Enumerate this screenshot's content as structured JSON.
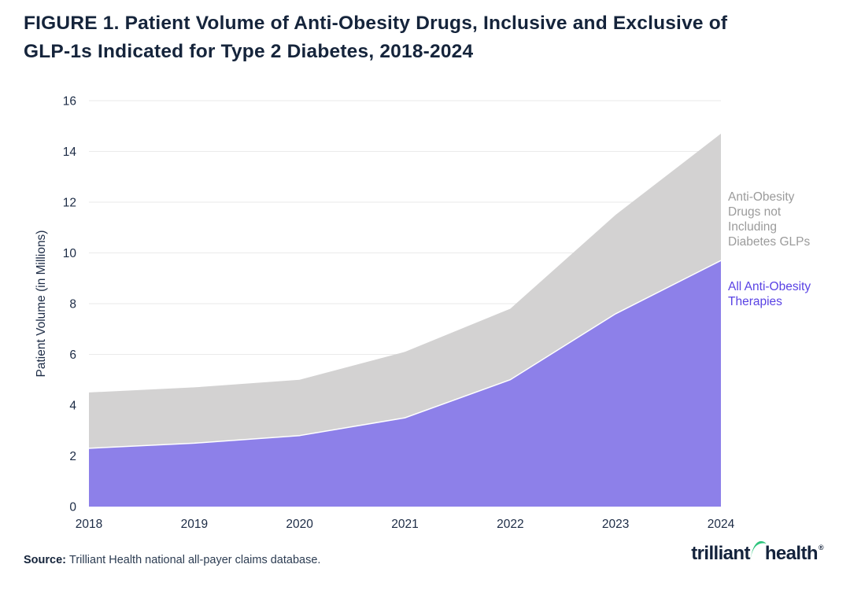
{
  "page": {
    "title_line1": "FIGURE 1. Patient Volume of Anti-Obesity Drugs, Inclusive and Exclusive of",
    "title_line2": "GLP-1s Indicated for Type 2 Diabetes, 2018-2024"
  },
  "footer": {
    "source_label": "Source:",
    "source_text": "Trilliant Health national all-payer claims database.",
    "logo_left": "trilliant",
    "logo_right": "health",
    "logo_reg": "®",
    "logo_swoosh_color": "#2ec57d"
  },
  "chart_data": {
    "type": "area",
    "title": "FIGURE 1. Patient Volume of Anti-Obesity Drugs, Inclusive and Exclusive of GLP-1s Indicated for Type 2 Diabetes, 2018-2024",
    "categories": [
      "2018",
      "2019",
      "2020",
      "2021",
      "2022",
      "2023",
      "2024"
    ],
    "series": [
      {
        "name": "All Anti-Obesity Therapies",
        "values": [
          2.3,
          2.5,
          2.8,
          3.5,
          5.0,
          7.6,
          9.7
        ],
        "color": "#8d80e9",
        "band": "purple area drawn from 0 (front layer)"
      },
      {
        "name": "Anti-Obesity Drugs not Including Diabetes GLPs",
        "values": [
          4.5,
          4.7,
          5.0,
          6.1,
          7.8,
          11.5,
          14.7
        ],
        "color": "#d3d2d2",
        "band": "gray outer envelope drawn from 0 (back layer)"
      }
    ],
    "xlabel": "",
    "ylabel": "Patient Volume (in Millions)",
    "ylim": [
      0,
      16
    ],
    "ytick_step": 2,
    "yticks": [
      0,
      2,
      4,
      6,
      8,
      10,
      12,
      14,
      16
    ],
    "grid": "horizontal",
    "legend_position": "right of plot area",
    "legend": {
      "gray_lines": [
        "Anti-Obesity",
        "Drugs not",
        "Including",
        "Diabetes GLPs"
      ],
      "purple_lines": [
        "All Anti-Obesity",
        "Therapies"
      ]
    },
    "colors": {
      "grid": "#eaeaea",
      "tick_text": "#1c2b45",
      "legend_gray_text": "#9b9b9b",
      "legend_purple_text": "#5a43e4",
      "boundary_stroke": "#ffffff"
    }
  }
}
